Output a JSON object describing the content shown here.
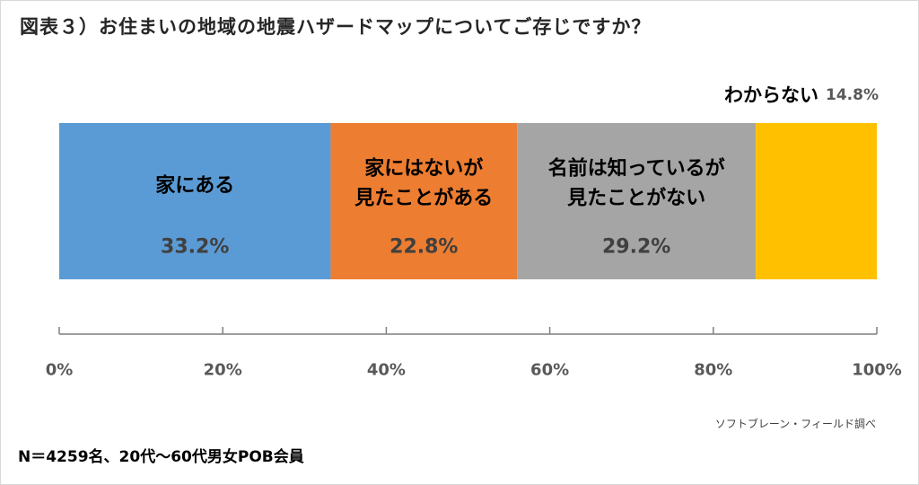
{
  "chart_data": {
    "type": "bar",
    "orientation": "horizontal",
    "stacked": true,
    "title": "図表３）お住まいの地域の地震ハザードマップについてご存じですか？",
    "segments": [
      {
        "label": [
          "家にある"
        ],
        "value": 33.2,
        "value_label": "33.2%",
        "color": "#5b9bd5"
      },
      {
        "label": [
          "家にはないが",
          "見たことがある"
        ],
        "value": 22.8,
        "value_label": "22.8%",
        "color": "#ed7d31"
      },
      {
        "label": [
          "名前は知っているが",
          "見たことがない"
        ],
        "value": 29.2,
        "value_label": "29.2%",
        "color": "#a5a5a5"
      },
      {
        "label": [
          "わからない"
        ],
        "value": 14.8,
        "value_label": "14.8%",
        "color": "#ffc000"
      }
    ],
    "xlim": [
      0,
      100
    ],
    "ticks": [
      "0%",
      "20%",
      "40%",
      "60%",
      "80%",
      "100%"
    ],
    "grid": false,
    "legend": "none"
  },
  "source": "ソフトブレーン・フィールド調べ",
  "note": "N＝4259名、20代〜60代男女POB会員"
}
